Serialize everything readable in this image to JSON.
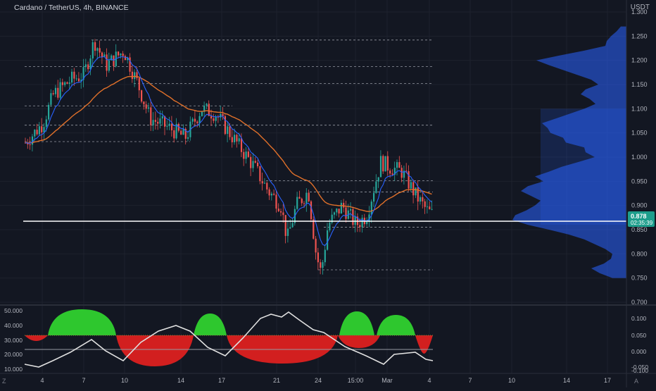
{
  "header": {
    "symbol": "Cardano / TetherUS, 4h, BINANCE",
    "currency": "USDT"
  },
  "price_axis": {
    "ticks": [
      "1.300",
      "1.250",
      "1.200",
      "1.150",
      "1.100",
      "1.050",
      "1.000",
      "0.950",
      "0.900",
      "0.850",
      "0.800",
      "0.750",
      "0.700"
    ],
    "current_price": "0.878",
    "countdown": "02:35:39"
  },
  "time_axis": {
    "ticks": [
      "4",
      "7",
      "10",
      "14",
      "17",
      "21",
      "24",
      "15:00",
      "Mar",
      "4",
      "7",
      "10",
      "14",
      "17"
    ]
  },
  "oscillator": {
    "left_ticks": [
      "50.000",
      "40.000",
      "30.000",
      "20.000",
      "10.000"
    ],
    "right_ticks": [
      "0.100",
      "0.050",
      "0.000",
      "-0.050",
      "-0.100"
    ]
  },
  "corners": {
    "left": "Z",
    "right": "A"
  },
  "colors": {
    "background": "#131722",
    "up": "#26a69a",
    "down": "#ef5350",
    "ema_fast": "#2962ff",
    "ema_slow": "#e0702a",
    "volume_profile": "#2962ff",
    "current_price_badge": "#1e9e8c",
    "osc_positive": "#2ec72e",
    "osc_negative": "#d21f1f",
    "osc_line": "#e0e0e0"
  }
}
